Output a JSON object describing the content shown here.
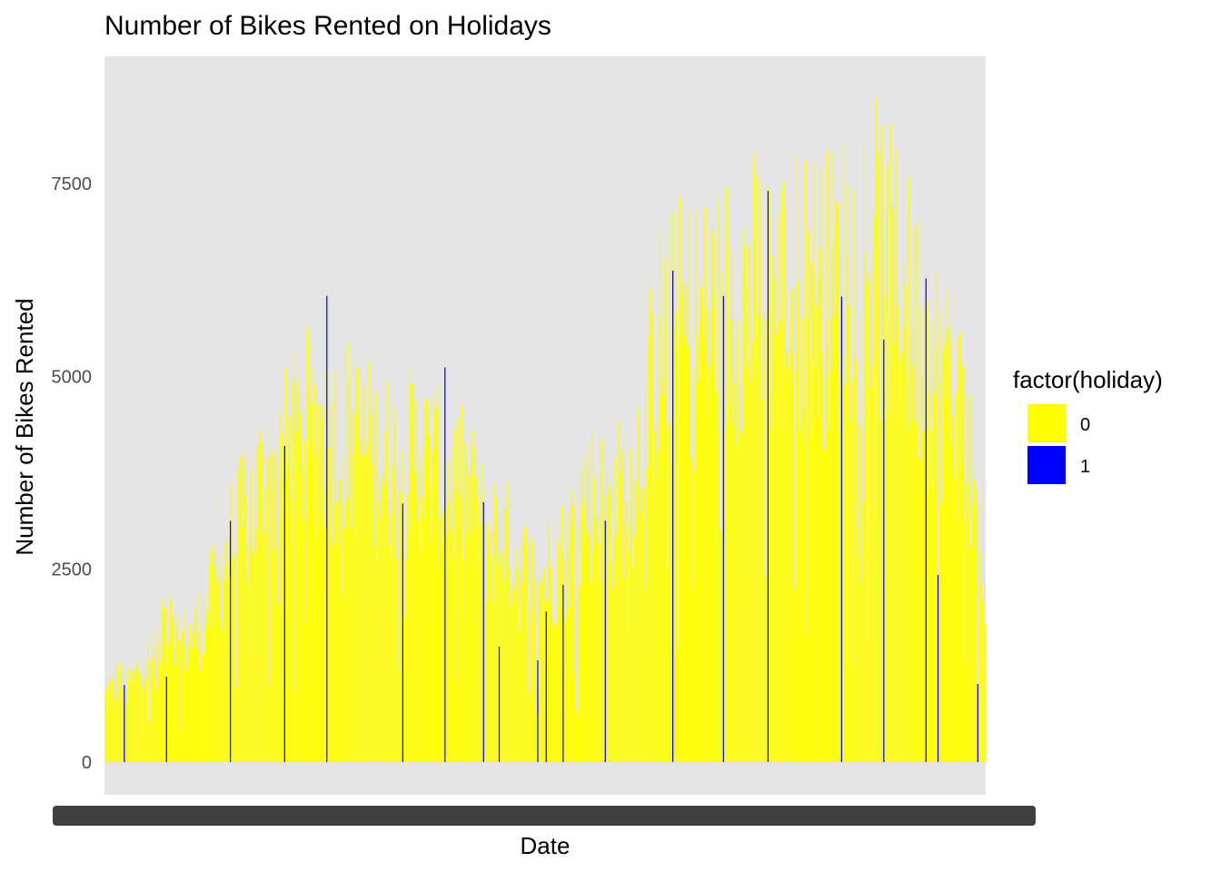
{
  "chart_data": {
    "type": "bar",
    "title": "Number of Bikes Rented on Holidays",
    "xlabel": "Date",
    "ylabel": "Number of Bikes Rented",
    "ylim": [
      0,
      9000
    ],
    "y_ticks": [
      0,
      2500,
      5000,
      7500
    ],
    "y_tick_labels": [
      "0",
      "2500",
      "5000",
      "7500"
    ],
    "x_tick_labels_overplotted": "2011-01-01 … 2012-12-31 (731 dates, overlapping)",
    "grid": false,
    "legend": {
      "title": "factor(holiday)",
      "placement": "right",
      "entries": [
        {
          "label": "0",
          "color": "#ffff00"
        },
        {
          "label": "1",
          "color": "#0000ff"
        }
      ]
    },
    "panel_background": "#e5e5e5",
    "n_days": 731,
    "series": [
      {
        "name": "0",
        "color": "#ffff00",
        "description": "daily rentals on non-holidays; profile given as [day_index, rentals] anchor points",
        "profile": [
          [
            0,
            985
          ],
          [
            10,
            1300
          ],
          [
            20,
            1100
          ],
          [
            30,
            1600
          ],
          [
            45,
            1700
          ],
          [
            55,
            2900
          ],
          [
            60,
            1800
          ],
          [
            75,
            2000
          ],
          [
            90,
            2600
          ],
          [
            100,
            3200
          ],
          [
            115,
            3800
          ],
          [
            130,
            4300
          ],
          [
            150,
            4700
          ],
          [
            170,
            5200
          ],
          [
            185,
            5000
          ],
          [
            200,
            5100
          ],
          [
            220,
            4800
          ],
          [
            240,
            4600
          ],
          [
            260,
            4800
          ],
          [
            280,
            4400
          ],
          [
            300,
            4200
          ],
          [
            315,
            3600
          ],
          [
            330,
            3500
          ],
          [
            345,
            3000
          ],
          [
            360,
            2800
          ],
          [
            380,
            3200
          ],
          [
            400,
            4200
          ],
          [
            420,
            3900
          ],
          [
            440,
            4600
          ],
          [
            460,
            6500
          ],
          [
            480,
            6800
          ],
          [
            500,
            6800
          ],
          [
            520,
            7200
          ],
          [
            540,
            7300
          ],
          [
            560,
            7200
          ],
          [
            580,
            7400
          ],
          [
            600,
            7300
          ],
          [
            620,
            7800
          ],
          [
            640,
            7900
          ],
          [
            660,
            7300
          ],
          [
            680,
            6500
          ],
          [
            700,
            5800
          ],
          [
            715,
            5200
          ],
          [
            730,
            2100
          ]
        ]
      },
      {
        "name": "1",
        "color": "#0000ff",
        "points": [
          {
            "date": "2011-01-17",
            "day": 16,
            "value": 1000
          },
          {
            "date": "2011-02-21",
            "day": 51,
            "value": 1107
          },
          {
            "date": "2011-04-15",
            "day": 104,
            "value": 3126
          },
          {
            "date": "2011-05-30",
            "day": 149,
            "value": 4098
          },
          {
            "date": "2011-07-04",
            "day": 184,
            "value": 6043
          },
          {
            "date": "2011-09-05",
            "day": 247,
            "value": 3351
          },
          {
            "date": "2011-10-10",
            "day": 282,
            "value": 5117
          },
          {
            "date": "2011-11-11",
            "day": 314,
            "value": 3368
          },
          {
            "date": "2011-11-24",
            "day": 327,
            "value": 1495
          },
          {
            "date": "2011-12-26",
            "day": 359,
            "value": 1317
          },
          {
            "date": "2012-01-02",
            "day": 366,
            "value": 1951
          },
          {
            "date": "2012-01-16",
            "day": 380,
            "value": 2298
          },
          {
            "date": "2012-02-20",
            "day": 415,
            "value": 3129
          },
          {
            "date": "2012-04-16",
            "day": 471,
            "value": 6370
          },
          {
            "date": "2012-05-28",
            "day": 513,
            "value": 6041
          },
          {
            "date": "2012-07-04",
            "day": 550,
            "value": 7403
          },
          {
            "date": "2012-09-03",
            "day": 611,
            "value": 6034
          },
          {
            "date": "2012-10-08",
            "day": 646,
            "value": 5478
          },
          {
            "date": "2012-11-12",
            "day": 681,
            "value": 6269
          },
          {
            "date": "2012-11-22",
            "day": 691,
            "value": 2425
          },
          {
            "date": "2012-12-25",
            "day": 724,
            "value": 1013
          }
        ]
      }
    ]
  }
}
